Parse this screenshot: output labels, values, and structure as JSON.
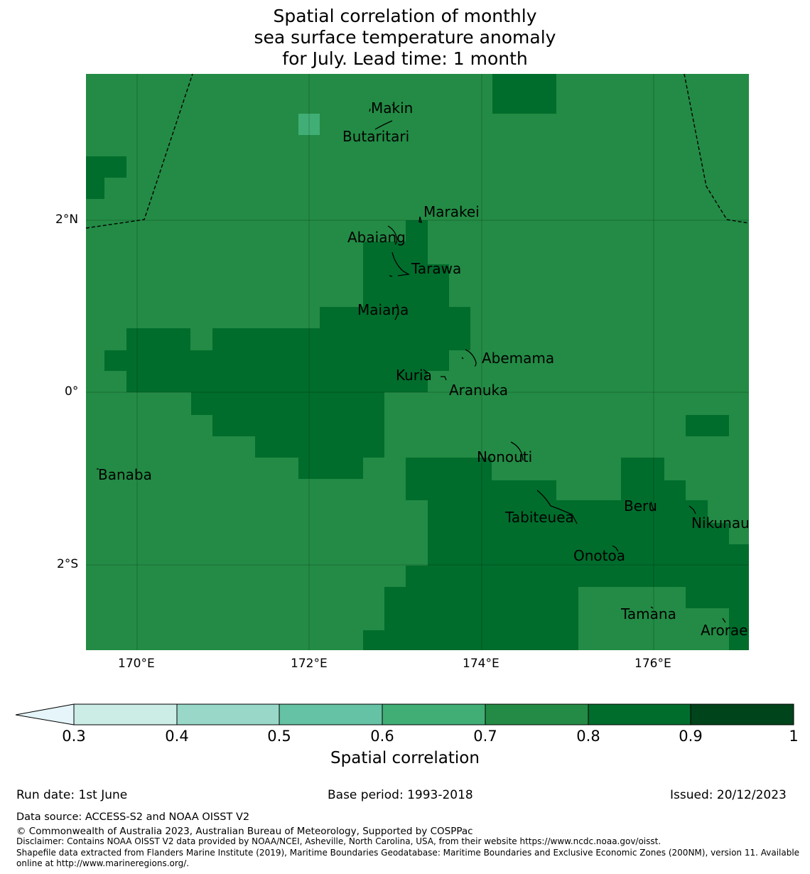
{
  "title": {
    "line1": "Spatial correlation of monthly",
    "line2": "sea surface temperature anomaly",
    "line3": "for July. Lead time: 1 month"
  },
  "map": {
    "lon_labels": [
      "170°E",
      "172°E",
      "174°E",
      "176°E"
    ],
    "lat_labels": [
      "2°N",
      "0°",
      "2°S"
    ],
    "islands": [
      "Makin",
      "Butaritari",
      "Marakei",
      "Abaiang",
      "Tarawa",
      "Maiana",
      "Abemama",
      "Kuria",
      "Aranuka",
      "Nonouti",
      "Banaba",
      "Tabiteuea",
      "Beru",
      "Nikunau",
      "Onotoa",
      "Tamana",
      "Arorae"
    ],
    "colors": {
      "c0": "#e5f5f9",
      "c1": "#ccece6",
      "c2": "#99d8c9",
      "c3": "#66c2a4",
      "c4": "#41ae76",
      "c5": "#238b45",
      "c6": "#006d2c",
      "c7": "#00441b"
    }
  },
  "colorbar": {
    "ticks": [
      "0.3",
      "0.4",
      "0.5",
      "0.6",
      "0.7",
      "0.8",
      "0.9",
      "1"
    ],
    "label": "Spatial correlation"
  },
  "footer": {
    "run_date": "Run date: 1st June",
    "base_period": "Base period: 1993-2018",
    "issued": "Issued: 20/12/2023",
    "data_source": "Data source: ACCESS-S2 and NOAA OISST V2",
    "copyright": "© Commonwealth of Australia 2023, Australian Bureau of Meteorology, Supported by COSPPac",
    "disclaimer": "Disclaimer: Contains NOAA OISST V2 data provided by NOAA/NCEI, Asheville, North Carolina, USA, from their website https://www.ncdc.noaa.gov/oisst.",
    "shapefile1": "Shapefile data extracted from Flanders Marine Institute (2019), Maritime Boundaries Geodatabase: Maritime Boundaries and Exclusive Economic Zones (200NM), version 11. Available",
    "shapefile2": "online at http://www.marineregions.org/."
  }
}
